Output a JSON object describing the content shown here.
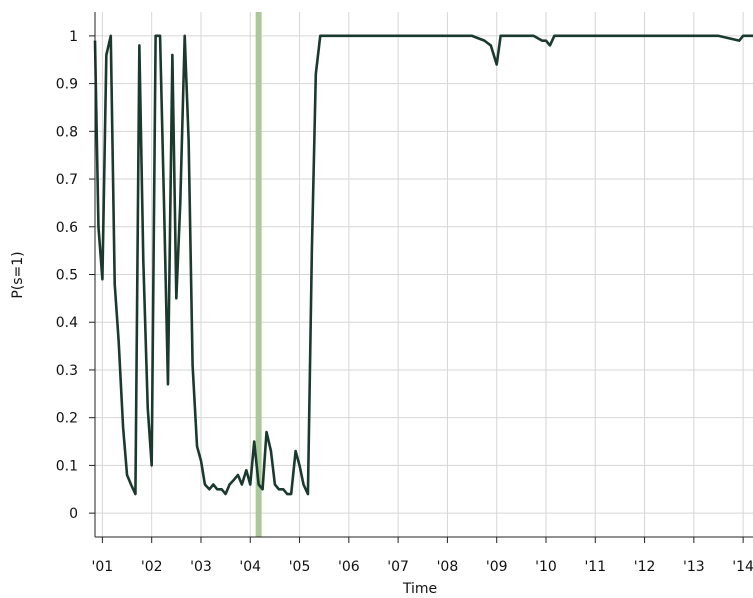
{
  "chart_data": {
    "type": "line",
    "xlabel": "Time",
    "ylabel": "P(s=1)",
    "xlim": [
      2000.85,
      2014.2
    ],
    "ylim": [
      -0.05,
      1.05
    ],
    "grid": true,
    "x_ticks": [
      2001,
      2002,
      2003,
      2004,
      2005,
      2006,
      2007,
      2008,
      2009,
      2010,
      2011,
      2012,
      2013,
      2014
    ],
    "x_tick_labels": [
      "'01",
      "'02",
      "'03",
      "'04",
      "'05",
      "'06",
      "'07",
      "'08",
      "'09",
      "'10",
      "'11",
      "'12",
      "'13",
      "'14"
    ],
    "y_ticks": [
      0,
      0.1,
      0.2,
      0.3,
      0.4,
      0.5,
      0.6,
      0.7,
      0.8,
      0.9,
      1
    ],
    "y_tick_labels": [
      "0",
      "0.1",
      "0.2",
      "0.3",
      "0.4",
      "0.5",
      "0.6",
      "0.7",
      "0.8",
      "0.9",
      "1"
    ],
    "vertical_marker": {
      "x": 2004.17,
      "color": "#a9c99a"
    },
    "series": [
      {
        "color": "#1b3a2d",
        "x": [
          2000.85,
          2000.92,
          2001.0,
          2001.08,
          2001.17,
          2001.25,
          2001.33,
          2001.42,
          2001.5,
          2001.58,
          2001.67,
          2001.75,
          2001.83,
          2001.92,
          2002.0,
          2002.08,
          2002.17,
          2002.25,
          2002.33,
          2002.42,
          2002.5,
          2002.58,
          2002.67,
          2002.75,
          2002.83,
          2002.92,
          2003.0,
          2003.08,
          2003.17,
          2003.25,
          2003.33,
          2003.42,
          2003.5,
          2003.58,
          2003.67,
          2003.75,
          2003.83,
          2003.92,
          2004.0,
          2004.08,
          2004.17,
          2004.25,
          2004.33,
          2004.42,
          2004.5,
          2004.58,
          2004.67,
          2004.75,
          2004.83,
          2004.92,
          2005.0,
          2005.08,
          2005.17,
          2005.25,
          2005.33,
          2005.42,
          2005.5,
          2005.75,
          2006.0,
          2006.5,
          2007.0,
          2007.5,
          2008.0,
          2008.5,
          2008.75,
          2008.88,
          2009.0,
          2009.08,
          2009.17,
          2009.5,
          2009.75,
          2009.92,
          2010.0,
          2010.08,
          2010.17,
          2010.5,
          2010.75,
          2011.0,
          2011.5,
          2012.0,
          2012.5,
          2013.0,
          2013.5,
          2013.92,
          2014.0,
          2014.2
        ],
        "y": [
          0.99,
          0.6,
          0.49,
          0.96,
          1.0,
          0.48,
          0.36,
          0.18,
          0.08,
          0.06,
          0.04,
          0.98,
          0.53,
          0.22,
          0.1,
          1.0,
          1.0,
          0.65,
          0.27,
          0.96,
          0.45,
          0.65,
          1.0,
          0.78,
          0.31,
          0.14,
          0.11,
          0.06,
          0.05,
          0.06,
          0.05,
          0.05,
          0.04,
          0.06,
          0.07,
          0.08,
          0.06,
          0.09,
          0.06,
          0.15,
          0.06,
          0.05,
          0.17,
          0.13,
          0.06,
          0.05,
          0.05,
          0.04,
          0.04,
          0.13,
          0.1,
          0.06,
          0.04,
          0.55,
          0.92,
          1.0,
          1.0,
          1.0,
          1.0,
          1.0,
          1.0,
          1.0,
          1.0,
          1.0,
          0.99,
          0.98,
          0.94,
          1.0,
          1.0,
          1.0,
          1.0,
          0.99,
          0.99,
          0.98,
          1.0,
          1.0,
          1.0,
          1.0,
          1.0,
          1.0,
          1.0,
          1.0,
          1.0,
          0.99,
          1.0,
          1.0
        ]
      }
    ]
  }
}
